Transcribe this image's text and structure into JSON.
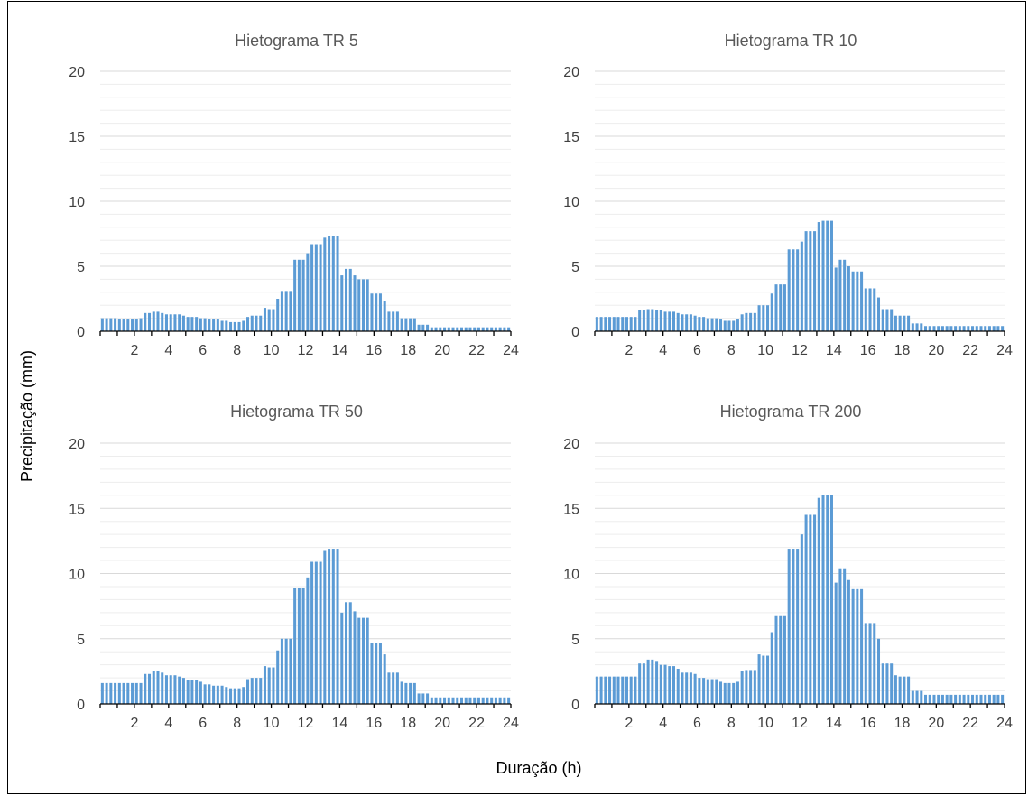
{
  "xlabel": "Duração (h)",
  "ylabel": "Precipitação (mm)",
  "colors": {
    "bar": "#5b9bd5",
    "grid": "#d9d9d9",
    "axis": "#000000"
  },
  "chart_data": [
    {
      "type": "bar",
      "title": "Hietograma TR 5",
      "x_ticks": [
        "2",
        "4",
        "6",
        "8",
        "10",
        "12",
        "14",
        "16",
        "18",
        "20",
        "22",
        "24"
      ],
      "y_ticks": [
        "0",
        "5",
        "10",
        "15",
        "20"
      ],
      "ylim": [
        0,
        20
      ],
      "xlim": [
        0,
        24
      ],
      "bar_width_h": 0.25,
      "values": [
        1.0,
        1.0,
        1.0,
        1.0,
        0.9,
        0.9,
        0.9,
        0.9,
        0.9,
        1.0,
        1.4,
        1.4,
        1.5,
        1.5,
        1.4,
        1.3,
        1.3,
        1.3,
        1.3,
        1.2,
        1.1,
        1.1,
        1.1,
        1.0,
        1.0,
        0.9,
        0.9,
        0.9,
        0.8,
        0.8,
        0.7,
        0.7,
        0.7,
        0.8,
        1.1,
        1.2,
        1.2,
        1.2,
        1.8,
        1.7,
        1.7,
        2.5,
        3.1,
        3.1,
        3.1,
        5.5,
        5.5,
        5.5,
        6.0,
        6.7,
        6.7,
        6.7,
        7.2,
        7.3,
        7.3,
        7.3,
        4.3,
        4.8,
        4.8,
        4.3,
        4.0,
        4.0,
        4.0,
        2.9,
        2.9,
        2.9,
        2.3,
        1.5,
        1.5,
        1.5,
        1.0,
        1.0,
        1.0,
        1.0,
        0.5,
        0.5,
        0.5,
        0.3,
        0.3,
        0.3,
        0.3,
        0.3,
        0.3,
        0.3,
        0.3,
        0.3,
        0.3,
        0.3,
        0.3,
        0.3,
        0.3,
        0.3,
        0.3,
        0.3,
        0.3,
        0.3
      ]
    },
    {
      "type": "bar",
      "title": "Hietograma TR 10",
      "x_ticks": [
        "2",
        "4",
        "6",
        "8",
        "10",
        "12",
        "14",
        "16",
        "18",
        "20",
        "22",
        "24"
      ],
      "y_ticks": [
        "0",
        "5",
        "10",
        "15",
        "20"
      ],
      "ylim": [
        0,
        20
      ],
      "xlim": [
        0,
        24
      ],
      "bar_width_h": 0.25,
      "values": [
        1.1,
        1.1,
        1.1,
        1.1,
        1.1,
        1.1,
        1.1,
        1.1,
        1.1,
        1.1,
        1.6,
        1.6,
        1.7,
        1.7,
        1.6,
        1.6,
        1.5,
        1.5,
        1.5,
        1.4,
        1.3,
        1.3,
        1.3,
        1.2,
        1.1,
        1.1,
        1.0,
        1.0,
        1.0,
        0.9,
        0.8,
        0.8,
        0.8,
        0.9,
        1.3,
        1.4,
        1.4,
        1.4,
        2.0,
        2.0,
        2.0,
        2.9,
        3.6,
        3.6,
        3.6,
        6.3,
        6.3,
        6.3,
        6.9,
        7.7,
        7.7,
        7.7,
        8.4,
        8.5,
        8.5,
        8.5,
        4.9,
        5.5,
        5.5,
        5.0,
        4.6,
        4.6,
        4.6,
        3.3,
        3.3,
        3.3,
        2.6,
        1.7,
        1.7,
        1.7,
        1.2,
        1.2,
        1.2,
        1.2,
        0.6,
        0.6,
        0.6,
        0.4,
        0.4,
        0.4,
        0.4,
        0.4,
        0.4,
        0.4,
        0.4,
        0.4,
        0.4,
        0.4,
        0.4,
        0.4,
        0.4,
        0.4,
        0.4,
        0.4,
        0.4,
        0.4
      ]
    },
    {
      "type": "bar",
      "title": "Hietograma TR 50",
      "x_ticks": [
        "2",
        "4",
        "6",
        "8",
        "10",
        "12",
        "14",
        "16",
        "18",
        "20",
        "22",
        "24"
      ],
      "y_ticks": [
        "0",
        "5",
        "10",
        "15",
        "20"
      ],
      "ylim": [
        0,
        20
      ],
      "xlim": [
        0,
        24
      ],
      "bar_width_h": 0.25,
      "values": [
        1.6,
        1.6,
        1.6,
        1.6,
        1.6,
        1.6,
        1.6,
        1.6,
        1.6,
        1.6,
        2.3,
        2.3,
        2.5,
        2.5,
        2.4,
        2.2,
        2.2,
        2.2,
        2.1,
        2.0,
        1.8,
        1.8,
        1.8,
        1.7,
        1.5,
        1.5,
        1.4,
        1.4,
        1.4,
        1.3,
        1.2,
        1.2,
        1.2,
        1.3,
        1.9,
        2.0,
        2.0,
        2.0,
        2.9,
        2.8,
        2.8,
        4.1,
        5.0,
        5.0,
        5.0,
        8.9,
        8.9,
        8.9,
        9.7,
        10.9,
        10.9,
        10.9,
        11.8,
        11.9,
        11.9,
        11.9,
        7.0,
        7.8,
        7.8,
        7.1,
        6.6,
        6.6,
        6.6,
        4.7,
        4.7,
        4.7,
        3.8,
        2.4,
        2.4,
        2.4,
        1.7,
        1.6,
        1.6,
        1.6,
        0.8,
        0.8,
        0.8,
        0.5,
        0.5,
        0.5,
        0.5,
        0.5,
        0.5,
        0.5,
        0.5,
        0.5,
        0.5,
        0.5,
        0.5,
        0.5,
        0.5,
        0.5,
        0.5,
        0.5,
        0.5,
        0.5
      ]
    },
    {
      "type": "bar",
      "title": "Hietograma TR 200",
      "x_ticks": [
        "2",
        "4",
        "6",
        "8",
        "10",
        "12",
        "14",
        "16",
        "18",
        "20",
        "22",
        "24"
      ],
      "y_ticks": [
        "0",
        "5",
        "10",
        "15",
        "20"
      ],
      "ylim": [
        0,
        20
      ],
      "xlim": [
        0,
        24
      ],
      "bar_width_h": 0.25,
      "values": [
        2.1,
        2.1,
        2.1,
        2.1,
        2.1,
        2.1,
        2.1,
        2.1,
        2.1,
        2.1,
        3.1,
        3.1,
        3.4,
        3.4,
        3.3,
        3.0,
        3.0,
        2.9,
        2.9,
        2.7,
        2.4,
        2.4,
        2.4,
        2.3,
        2.0,
        2.0,
        1.9,
        1.9,
        1.9,
        1.7,
        1.6,
        1.6,
        1.6,
        1.7,
        2.5,
        2.6,
        2.6,
        2.6,
        3.8,
        3.7,
        3.7,
        5.5,
        6.8,
        6.8,
        6.8,
        11.9,
        11.9,
        11.9,
        13.0,
        14.5,
        14.5,
        14.5,
        15.8,
        16.0,
        16.0,
        16.0,
        9.3,
        10.4,
        10.4,
        9.5,
        8.8,
        8.8,
        8.8,
        6.2,
        6.2,
        6.2,
        5.0,
        3.1,
        3.1,
        3.1,
        2.2,
        2.1,
        2.1,
        2.1,
        1.0,
        1.0,
        1.0,
        0.7,
        0.7,
        0.7,
        0.7,
        0.7,
        0.7,
        0.7,
        0.7,
        0.7,
        0.7,
        0.7,
        0.7,
        0.7,
        0.7,
        0.7,
        0.7,
        0.7,
        0.7,
        0.7
      ]
    }
  ]
}
